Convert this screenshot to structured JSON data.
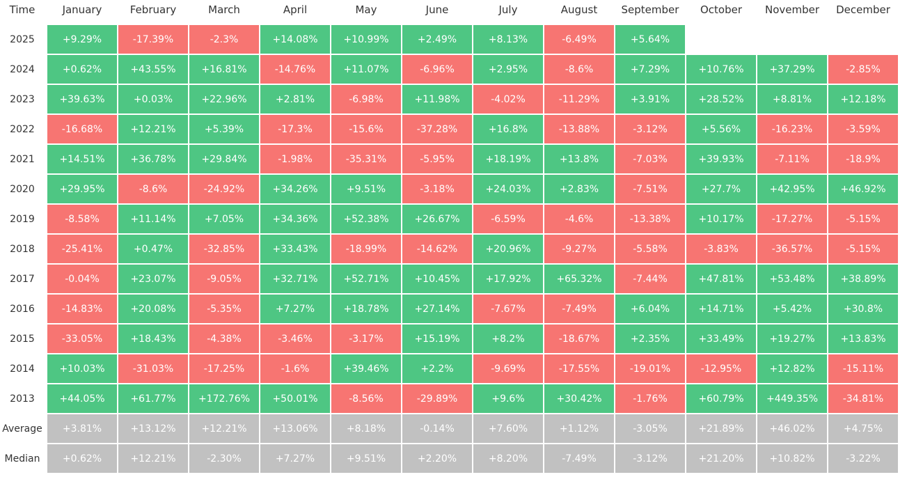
{
  "header": {
    "label": "Time",
    "months": [
      "January",
      "February",
      "March",
      "April",
      "May",
      "June",
      "July",
      "August",
      "September",
      "October",
      "November",
      "December"
    ]
  },
  "rows": [
    {
      "year": "2025",
      "values": [
        "+9.29%",
        "-17.39%",
        "-2.3%",
        "+14.08%",
        "+10.99%",
        "+2.49%",
        "+8.13%",
        "-6.49%",
        "+5.64%"
      ]
    },
    {
      "year": "2024",
      "values": [
        "+0.62%",
        "+43.55%",
        "+16.81%",
        "-14.76%",
        "+11.07%",
        "-6.96%",
        "+2.95%",
        "-8.6%",
        "+7.29%",
        "+10.76%",
        "+37.29%",
        "-2.85%"
      ]
    },
    {
      "year": "2023",
      "values": [
        "+39.63%",
        "+0.03%",
        "+22.96%",
        "+2.81%",
        "-6.98%",
        "+11.98%",
        "-4.02%",
        "-11.29%",
        "+3.91%",
        "+28.52%",
        "+8.81%",
        "+12.18%"
      ]
    },
    {
      "year": "2022",
      "values": [
        "-16.68%",
        "+12.21%",
        "+5.39%",
        "-17.3%",
        "-15.6%",
        "-37.28%",
        "+16.8%",
        "-13.88%",
        "-3.12%",
        "+5.56%",
        "-16.23%",
        "-3.59%"
      ]
    },
    {
      "year": "2021",
      "values": [
        "+14.51%",
        "+36.78%",
        "+29.84%",
        "-1.98%",
        "-35.31%",
        "-5.95%",
        "+18.19%",
        "+13.8%",
        "-7.03%",
        "+39.93%",
        "-7.11%",
        "-18.9%"
      ]
    },
    {
      "year": "2020",
      "values": [
        "+29.95%",
        "-8.6%",
        "-24.92%",
        "+34.26%",
        "+9.51%",
        "-3.18%",
        "+24.03%",
        "+2.83%",
        "-7.51%",
        "+27.7%",
        "+42.95%",
        "+46.92%"
      ]
    },
    {
      "year": "2019",
      "values": [
        "-8.58%",
        "+11.14%",
        "+7.05%",
        "+34.36%",
        "+52.38%",
        "+26.67%",
        "-6.59%",
        "-4.6%",
        "-13.38%",
        "+10.17%",
        "-17.27%",
        "-5.15%"
      ]
    },
    {
      "year": "2018",
      "values": [
        "-25.41%",
        "+0.47%",
        "-32.85%",
        "+33.43%",
        "-18.99%",
        "-14.62%",
        "+20.96%",
        "-9.27%",
        "-5.58%",
        "-3.83%",
        "-36.57%",
        "-5.15%"
      ]
    },
    {
      "year": "2017",
      "values": [
        "-0.04%",
        "+23.07%",
        "-9.05%",
        "+32.71%",
        "+52.71%",
        "+10.45%",
        "+17.92%",
        "+65.32%",
        "-7.44%",
        "+47.81%",
        "+53.48%",
        "+38.89%"
      ]
    },
    {
      "year": "2016",
      "values": [
        "-14.83%",
        "+20.08%",
        "-5.35%",
        "+7.27%",
        "+18.78%",
        "+27.14%",
        "-7.67%",
        "-7.49%",
        "+6.04%",
        "+14.71%",
        "+5.42%",
        "+30.8%"
      ]
    },
    {
      "year": "2015",
      "values": [
        "-33.05%",
        "+18.43%",
        "-4.38%",
        "-3.46%",
        "-3.17%",
        "+15.19%",
        "+8.2%",
        "-18.67%",
        "+2.35%",
        "+33.49%",
        "+19.27%",
        "+13.83%"
      ]
    },
    {
      "year": "2014",
      "values": [
        "+10.03%",
        "-31.03%",
        "-17.25%",
        "-1.6%",
        "+39.46%",
        "+2.2%",
        "-9.69%",
        "-17.55%",
        "-19.01%",
        "-12.95%",
        "+12.82%",
        "-15.11%"
      ]
    },
    {
      "year": "2013",
      "values": [
        "+44.05%",
        "+61.77%",
        "+172.76%",
        "+50.01%",
        "-8.56%",
        "-29.89%",
        "+9.6%",
        "+30.42%",
        "-1.76%",
        "+60.79%",
        "+449.35%",
        "-34.81%"
      ]
    }
  ],
  "summary": [
    {
      "label": "Average",
      "values": [
        "+3.81%",
        "+13.12%",
        "+12.21%",
        "+13.06%",
        "+8.18%",
        "-0.14%",
        "+7.60%",
        "+1.12%",
        "-3.05%",
        "+21.89%",
        "+46.02%",
        "+4.75%"
      ]
    },
    {
      "label": "Median",
      "values": [
        "+0.62%",
        "+12.21%",
        "-2.30%",
        "+7.27%",
        "+9.51%",
        "+2.20%",
        "+8.20%",
        "-7.49%",
        "-3.12%",
        "+21.20%",
        "+10.82%",
        "-3.22%"
      ]
    }
  ]
}
